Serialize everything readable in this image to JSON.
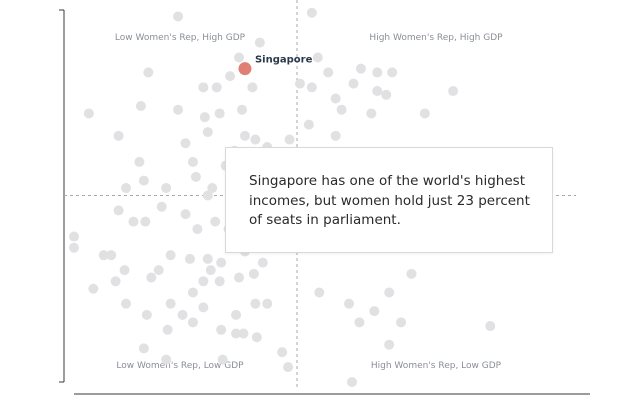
{
  "chart_data": {
    "type": "scatter",
    "title": "",
    "xlabel": "",
    "ylabel": "",
    "grid": false,
    "xlim": [
      -15,
      15
    ],
    "ylim": [
      -5,
      5
    ],
    "reference_lines": {
      "x": 0,
      "y": 0
    },
    "quadrant_labels": {
      "top_left": "Low Women's Rep, High GDP",
      "top_right": "High Women's Rep, High GDP",
      "bottom_left": "Low Women's Rep, Low GDP",
      "bottom_right": "High Women's Rep, Low GDP"
    },
    "series": [
      {
        "points": [
          {
            "x": -8.0,
            "y": 4.8
          },
          {
            "x": 1.0,
            "y": 4.9
          },
          {
            "x": -2.5,
            "y": 4.1
          },
          {
            "x": -3.9,
            "y": 3.7
          },
          {
            "x": 1.4,
            "y": 3.7
          },
          {
            "x": -10.0,
            "y": 3.3
          },
          {
            "x": 2.1,
            "y": 3.3
          },
          {
            "x": 4.3,
            "y": 3.4
          },
          {
            "x": 5.4,
            "y": 3.3
          },
          {
            "x": 6.4,
            "y": 3.3
          },
          {
            "x": -4.5,
            "y": 3.2
          },
          {
            "x": 3.8,
            "y": 3.0
          },
          {
            "x": 10.5,
            "y": 2.8
          },
          {
            "x": -6.3,
            "y": 2.9
          },
          {
            "x": -5.4,
            "y": 2.9
          },
          {
            "x": -3.0,
            "y": 2.9
          },
          {
            "x": 0.2,
            "y": 3.0
          },
          {
            "x": 1.0,
            "y": 2.9
          },
          {
            "x": 2.6,
            "y": 2.6
          },
          {
            "x": 5.4,
            "y": 2.8
          },
          {
            "x": 6.0,
            "y": 2.7
          },
          {
            "x": -10.5,
            "y": 2.4
          },
          {
            "x": -14.0,
            "y": 2.2
          },
          {
            "x": -8.0,
            "y": 2.3
          },
          {
            "x": -5.2,
            "y": 2.2
          },
          {
            "x": -3.7,
            "y": 2.3
          },
          {
            "x": -6.2,
            "y": 2.1
          },
          {
            "x": 3.0,
            "y": 2.3
          },
          {
            "x": 5.0,
            "y": 2.2
          },
          {
            "x": 8.6,
            "y": 2.2
          },
          {
            "x": -12.0,
            "y": 1.6
          },
          {
            "x": -6.0,
            "y": 1.7
          },
          {
            "x": -3.5,
            "y": 1.6
          },
          {
            "x": 0.8,
            "y": 1.9
          },
          {
            "x": 2.6,
            "y": 1.6
          },
          {
            "x": -2.8,
            "y": 1.5
          },
          {
            "x": -7.5,
            "y": 1.4
          },
          {
            "x": -4.2,
            "y": 1.2
          },
          {
            "x": -2.0,
            "y": 1.3
          },
          {
            "x": -0.5,
            "y": 1.5
          },
          {
            "x": -10.6,
            "y": 0.9
          },
          {
            "x": -7.0,
            "y": 0.9
          },
          {
            "x": -4.8,
            "y": 0.8
          },
          {
            "x": -1.8,
            "y": 0.9
          },
          {
            "x": -6.8,
            "y": 0.5
          },
          {
            "x": -4.0,
            "y": 0.4
          },
          {
            "x": -2.5,
            "y": 0.4
          },
          {
            "x": -10.3,
            "y": 0.4
          },
          {
            "x": -11.5,
            "y": 0.2
          },
          {
            "x": -8.8,
            "y": 0.2
          },
          {
            "x": -5.7,
            "y": 0.2
          },
          {
            "x": -6.0,
            "y": 0.0
          },
          {
            "x": -4.5,
            "y": 0.1
          },
          {
            "x": -2.4,
            "y": -0.1
          },
          {
            "x": -12.0,
            "y": -0.4
          },
          {
            "x": -10.2,
            "y": -0.7
          },
          {
            "x": -9.1,
            "y": -0.3
          },
          {
            "x": -7.5,
            "y": -0.5
          },
          {
            "x": -5.5,
            "y": -0.7
          },
          {
            "x": -3.2,
            "y": -0.5
          },
          {
            "x": -11.0,
            "y": -0.7
          },
          {
            "x": -6.7,
            "y": -0.9
          },
          {
            "x": -4.6,
            "y": -0.9
          },
          {
            "x": -15.0,
            "y": -1.1
          },
          {
            "x": -15.0,
            "y": -1.4
          },
          {
            "x": -13.0,
            "y": -1.6
          },
          {
            "x": -12.5,
            "y": -1.6
          },
          {
            "x": -8.5,
            "y": -1.6
          },
          {
            "x": -7.2,
            "y": -1.7
          },
          {
            "x": -6.0,
            "y": -1.7
          },
          {
            "x": -5.1,
            "y": -1.8
          },
          {
            "x": -3.5,
            "y": -1.5
          },
          {
            "x": -2.3,
            "y": -1.8
          },
          {
            "x": -11.6,
            "y": -2.0
          },
          {
            "x": -9.3,
            "y": -2.0
          },
          {
            "x": -5.8,
            "y": -2.0
          },
          {
            "x": -12.2,
            "y": -2.3
          },
          {
            "x": -9.8,
            "y": -2.2
          },
          {
            "x": -6.3,
            "y": -2.3
          },
          {
            "x": -3.9,
            "y": -2.2
          },
          {
            "x": -2.9,
            "y": -2.1
          },
          {
            "x": -13.7,
            "y": -2.5
          },
          {
            "x": -5.2,
            "y": -2.3
          },
          {
            "x": -7.0,
            "y": -2.6
          },
          {
            "x": -2.8,
            "y": -2.9
          },
          {
            "x": 1.5,
            "y": -2.6
          },
          {
            "x": -11.5,
            "y": -2.9
          },
          {
            "x": -8.5,
            "y": -2.9
          },
          {
            "x": -6.3,
            "y": -3.0
          },
          {
            "x": -10.1,
            "y": -3.2
          },
          {
            "x": -7.7,
            "y": -3.2
          },
          {
            "x": -4.1,
            "y": -3.2
          },
          {
            "x": -2.0,
            "y": -2.9
          },
          {
            "x": -8.7,
            "y": -3.6
          },
          {
            "x": -5.1,
            "y": -3.6
          },
          {
            "x": -3.6,
            "y": -3.7
          },
          {
            "x": -7.0,
            "y": -3.4
          },
          {
            "x": 3.5,
            "y": -2.9
          },
          {
            "x": 5.2,
            "y": -3.1
          },
          {
            "x": 6.2,
            "y": -2.6
          },
          {
            "x": 7.7,
            "y": -2.1
          },
          {
            "x": 4.2,
            "y": -3.4
          },
          {
            "x": 7.0,
            "y": -3.4
          },
          {
            "x": 13.0,
            "y": -3.5
          },
          {
            "x": 6.2,
            "y": -4.0
          },
          {
            "x": -5.0,
            "y": -4.4
          },
          {
            "x": -4.1,
            "y": -3.7
          },
          {
            "x": -2.7,
            "y": -3.8
          },
          {
            "x": -1.0,
            "y": -4.2
          },
          {
            "x": -0.6,
            "y": -4.6
          },
          {
            "x": 3.7,
            "y": -5.0
          },
          {
            "x": -10.3,
            "y": -4.1
          },
          {
            "x": -8.8,
            "y": -4.4
          }
        ]
      }
    ],
    "highlight": {
      "label": "Singapore",
      "x": -3.5,
      "y": 3.4
    },
    "callout": "Singapore has one of the world's highest incomes, but women hold just 23 percent of seats in parliament.",
    "colors": {
      "point": "#e1e1e4",
      "highlight": "#e07f73",
      "reference_line": "#a9a9a9",
      "axis": "#3a3a3a"
    }
  }
}
